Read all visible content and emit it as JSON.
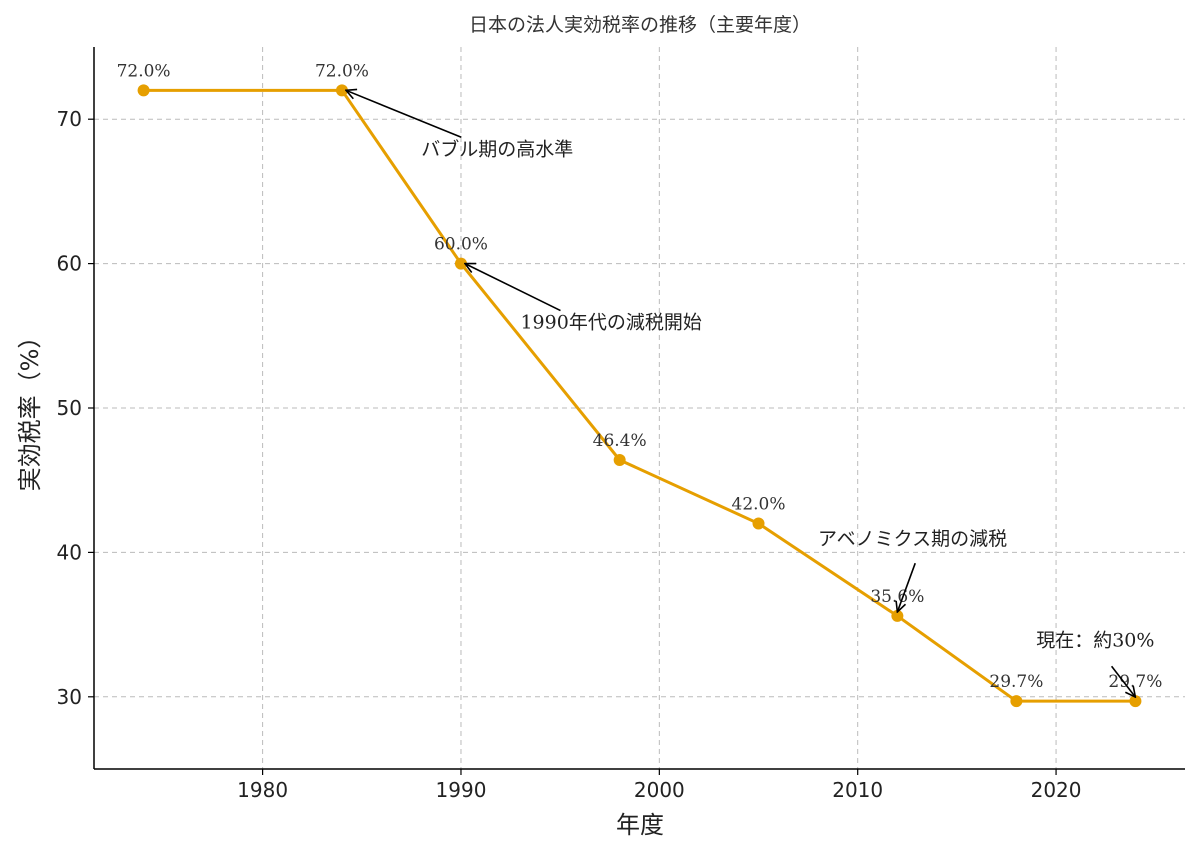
{
  "chart_data": {
    "type": "line",
    "title": "日本の法人実効税率の推移（主要年度）",
    "xlabel": "年度",
    "ylabel": "実効税率（%）",
    "xlim": [
      1971.5,
      2026.5
    ],
    "ylim": [
      25,
      75
    ],
    "xticks": [
      1980,
      1990,
      2000,
      2010,
      2020
    ],
    "yticks": [
      30,
      40,
      50,
      60,
      70
    ],
    "grid": true,
    "color": "#E69F00",
    "x": [
      1974,
      1984,
      1990,
      1998,
      2005,
      2012,
      2018,
      2024
    ],
    "y": [
      72.0,
      72.0,
      60.0,
      46.4,
      42.0,
      35.6,
      29.7,
      29.7
    ],
    "data_labels": [
      "72.0%",
      "72.0%",
      "60.0%",
      "46.4%",
      "42.0%",
      "35.6%",
      "29.7%",
      "29.7%"
    ],
    "annotations": [
      {
        "text": "バブル期の高水準",
        "x": 1984,
        "y": 72.0,
        "text_x": 1988,
        "text_y": 67.5
      },
      {
        "text": "1990年代の減税開始",
        "x": 1990,
        "y": 60.0,
        "text_x": 1993,
        "text_y": 55.5
      },
      {
        "text": "アベノミクス期の減税",
        "x": 2012,
        "y": 35.6,
        "text_x": 2008,
        "text_y": 40.5
      },
      {
        "text": "現在：約30%",
        "x": 2024,
        "y": 29.7,
        "text_x": 2019,
        "text_y": 33.5
      }
    ]
  }
}
